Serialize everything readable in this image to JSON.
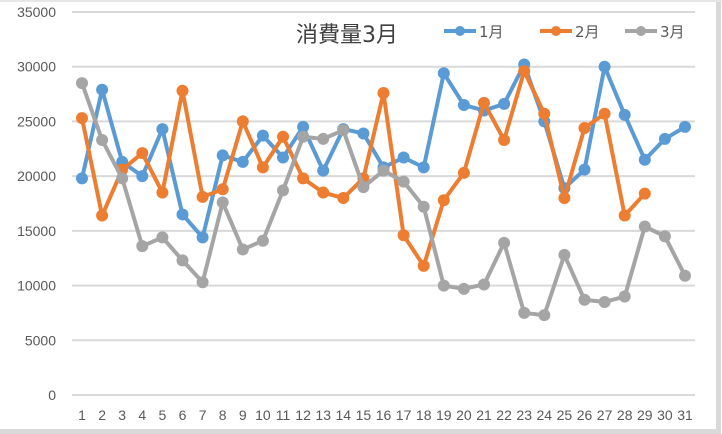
{
  "chart_data": {
    "type": "line",
    "title": "消費量3月",
    "xlabel": "",
    "ylabel": "",
    "ylim": [
      0,
      35000
    ],
    "yticks": [
      0,
      5000,
      10000,
      15000,
      20000,
      25000,
      30000,
      35000
    ],
    "grid": true,
    "legend_position": "top-right",
    "categories": [
      "1",
      "2",
      "3",
      "4",
      "5",
      "6",
      "7",
      "8",
      "9",
      "10",
      "11",
      "12",
      "13",
      "14",
      "15",
      "16",
      "17",
      "18",
      "19",
      "20",
      "21",
      "22",
      "23",
      "24",
      "25",
      "26",
      "27",
      "28",
      "29",
      "30",
      "31"
    ],
    "series": [
      {
        "name": "1月",
        "color": "#5b9bd5",
        "values": [
          19800,
          27900,
          21300,
          20000,
          24300,
          16500,
          14400,
          21900,
          21300,
          23700,
          21700,
          24500,
          20500,
          24300,
          23900,
          20800,
          21700,
          20800,
          29400,
          26500,
          26000,
          26600,
          30200,
          25000,
          18900,
          20600,
          30000,
          25600,
          21500,
          23400,
          24500
        ]
      },
      {
        "name": "2月",
        "color": "#ed7d31",
        "values": [
          25300,
          16400,
          20600,
          22100,
          18500,
          27800,
          18100,
          18800,
          25000,
          20800,
          23600,
          19800,
          18500,
          18000,
          19800,
          27600,
          14600,
          11800,
          17800,
          20300,
          26700,
          23300,
          29600,
          25700,
          18000,
          24400,
          25700,
          16400,
          18400
        ]
      },
      {
        "name": "3月",
        "color": "#a5a5a5",
        "values": [
          28500,
          23300,
          19800,
          13600,
          14400,
          12300,
          10300,
          17600,
          13300,
          14100,
          18700,
          23600,
          23400,
          24200,
          19000,
          20500,
          19500,
          17200,
          10000,
          9700,
          10100,
          13900,
          7500,
          7300,
          12800,
          8700,
          8500,
          9000,
          15400,
          14500,
          10900
        ]
      }
    ]
  },
  "colors": {
    "gridline": "#d9d9d9",
    "tick_text": "#595959",
    "title_text": "#404040"
  }
}
